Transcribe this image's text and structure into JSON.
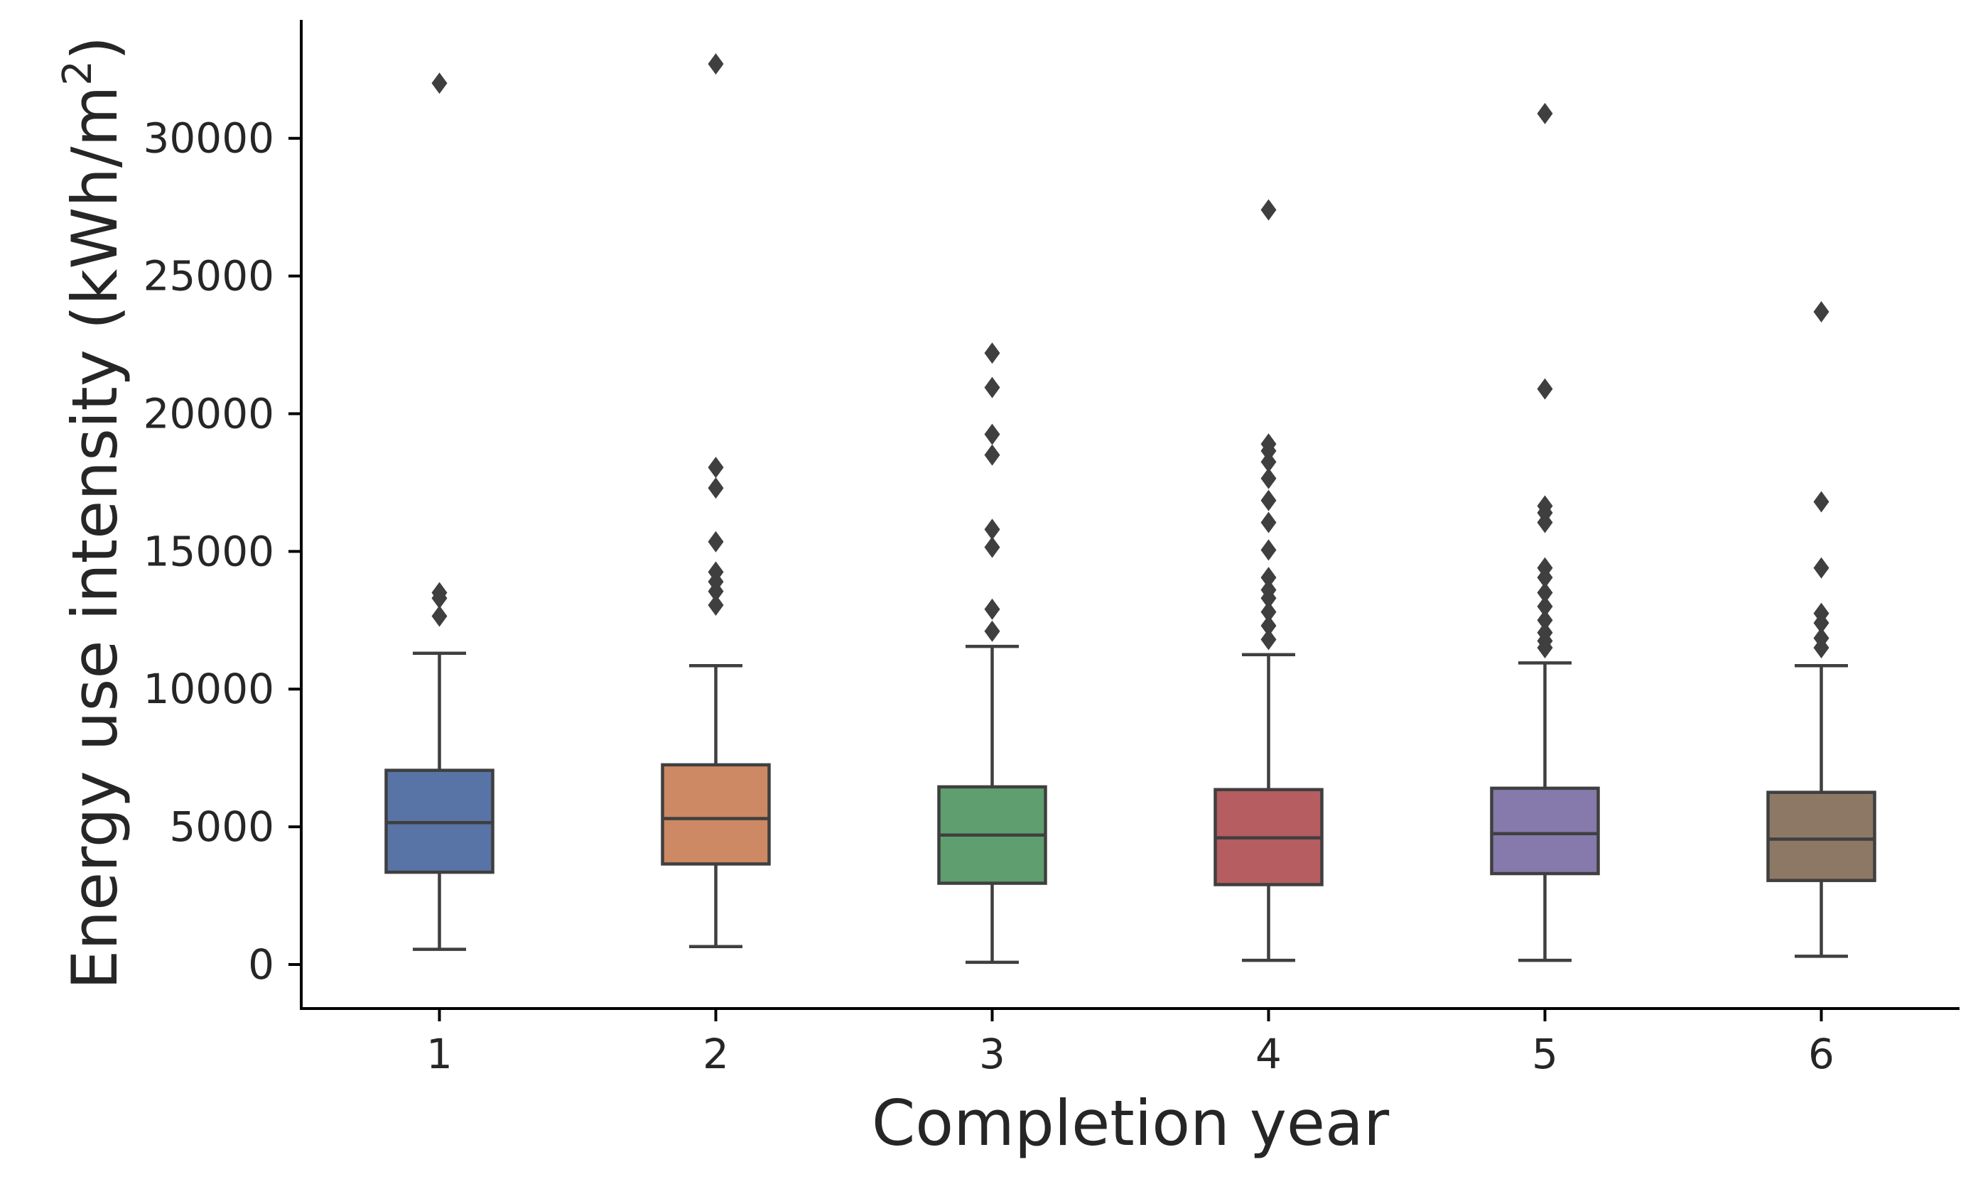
{
  "chart_data": {
    "type": "box",
    "xlabel": "Completion year",
    "ylabel": "Energy use intensity (kWh/m",
    "ylabel_superscript": "2",
    "ylabel_close": ")",
    "categories": [
      "1",
      "2",
      "3",
      "4",
      "5",
      "6"
    ],
    "yticks": [
      0,
      5000,
      10000,
      15000,
      20000,
      25000,
      30000
    ],
    "ylim": [
      -1600,
      34300
    ],
    "grid": false,
    "colors": [
      "#5873a6",
      "#cc8963",
      "#5f9e6e",
      "#b55d60",
      "#857aab",
      "#8d7866"
    ],
    "series": [
      {
        "category": "1",
        "whisker_low": 550,
        "q1": 3350,
        "median": 5150,
        "q3": 7050,
        "whisker_high": 11300,
        "outliers": [
          12650,
          13300,
          13500,
          32000
        ]
      },
      {
        "category": "2",
        "whisker_low": 650,
        "q1": 3650,
        "median": 5300,
        "q3": 7250,
        "whisker_high": 10850,
        "outliers": [
          13050,
          13550,
          13900,
          14250,
          15350,
          17300,
          18050,
          32700
        ]
      },
      {
        "category": "3",
        "whisker_low": 80,
        "q1": 2950,
        "median": 4700,
        "q3": 6450,
        "whisker_high": 11550,
        "outliers": [
          12100,
          12900,
          15150,
          15800,
          18500,
          19250,
          20950,
          22200
        ]
      },
      {
        "category": "4",
        "whisker_low": 150,
        "q1": 2900,
        "median": 4600,
        "q3": 6350,
        "whisker_high": 11250,
        "outliers": [
          11800,
          12300,
          12800,
          13300,
          13600,
          14050,
          15050,
          16050,
          16850,
          17650,
          18250,
          18650,
          18900,
          27400
        ]
      },
      {
        "category": "5",
        "whisker_low": 150,
        "q1": 3300,
        "median": 4750,
        "q3": 6400,
        "whisker_high": 10950,
        "outliers": [
          11500,
          11750,
          12050,
          12500,
          13000,
          13500,
          14050,
          14400,
          16050,
          16400,
          16650,
          20900,
          30900
        ]
      },
      {
        "category": "6",
        "whisker_low": 300,
        "q1": 3050,
        "median": 4550,
        "q3": 6250,
        "whisker_high": 10850,
        "outliers": [
          11500,
          11850,
          12400,
          12750,
          14400,
          16800,
          23700
        ]
      }
    ]
  }
}
